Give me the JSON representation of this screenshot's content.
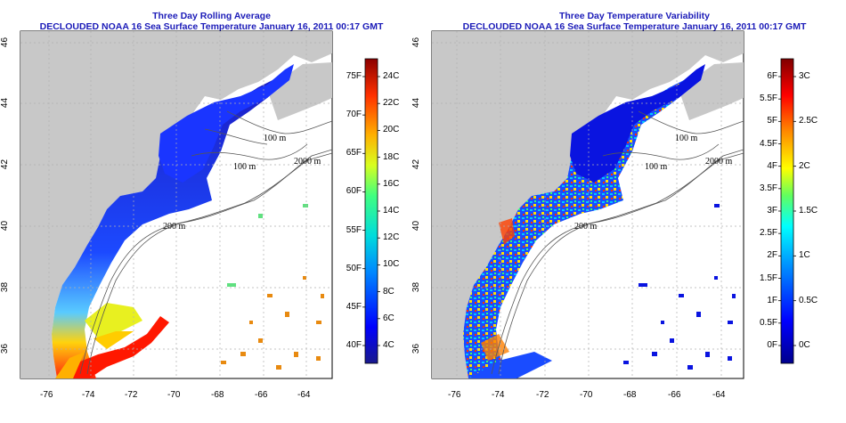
{
  "panels": [
    {
      "title_line1": "Three Day Rolling Average",
      "title_line2": "DECLOUDED NOAA 16 Sea Surface Temperature January 16, 2011 00:17 GMT",
      "colorbar": {
        "type": "sst",
        "f_labels": [
          "75F",
          "70F",
          "65F",
          "60F",
          "55F",
          "50F",
          "45F",
          "40F"
        ],
        "c_labels": [
          "24C",
          "22C",
          "20C",
          "18C",
          "16C",
          "14C",
          "12C",
          "10C",
          "8C",
          "6C",
          "4C"
        ]
      }
    },
    {
      "title_line1": "Three Day Temperature Variability",
      "title_line2": "DECLOUDED NOAA 16 Sea Surface Temperature January 16, 2011 00:17 GMT",
      "colorbar": {
        "type": "variability",
        "f_labels": [
          "6F",
          "5.5F",
          "5F",
          "4.5F",
          "4F",
          "3.5F",
          "3F",
          "2.5F",
          "2F",
          "1.5F",
          "1F",
          "0.5F",
          "0F"
        ],
        "c_labels": [
          "3C",
          "2.5C",
          "2C",
          "1.5C",
          "1C",
          "0.5C",
          "0C"
        ]
      }
    }
  ],
  "axes": {
    "x_ticks": [
      "-76",
      "-74",
      "-72",
      "-70",
      "-68",
      "-66",
      "-64"
    ],
    "y_ticks": [
      "46",
      "44",
      "42",
      "40",
      "38",
      "36"
    ]
  },
  "contours": {
    "labels_left": [
      "100 m",
      "100 m",
      "2000 m",
      "200 m"
    ],
    "labels_right": [
      "100 m",
      "100 m",
      "2000 m",
      "200 m"
    ]
  },
  "colors": {
    "title": "#1b1bb8",
    "land": "#c8c8c8",
    "ocean_nodata": "#ffffff",
    "grid": "#b0b0b0",
    "contour": "#555555"
  }
}
